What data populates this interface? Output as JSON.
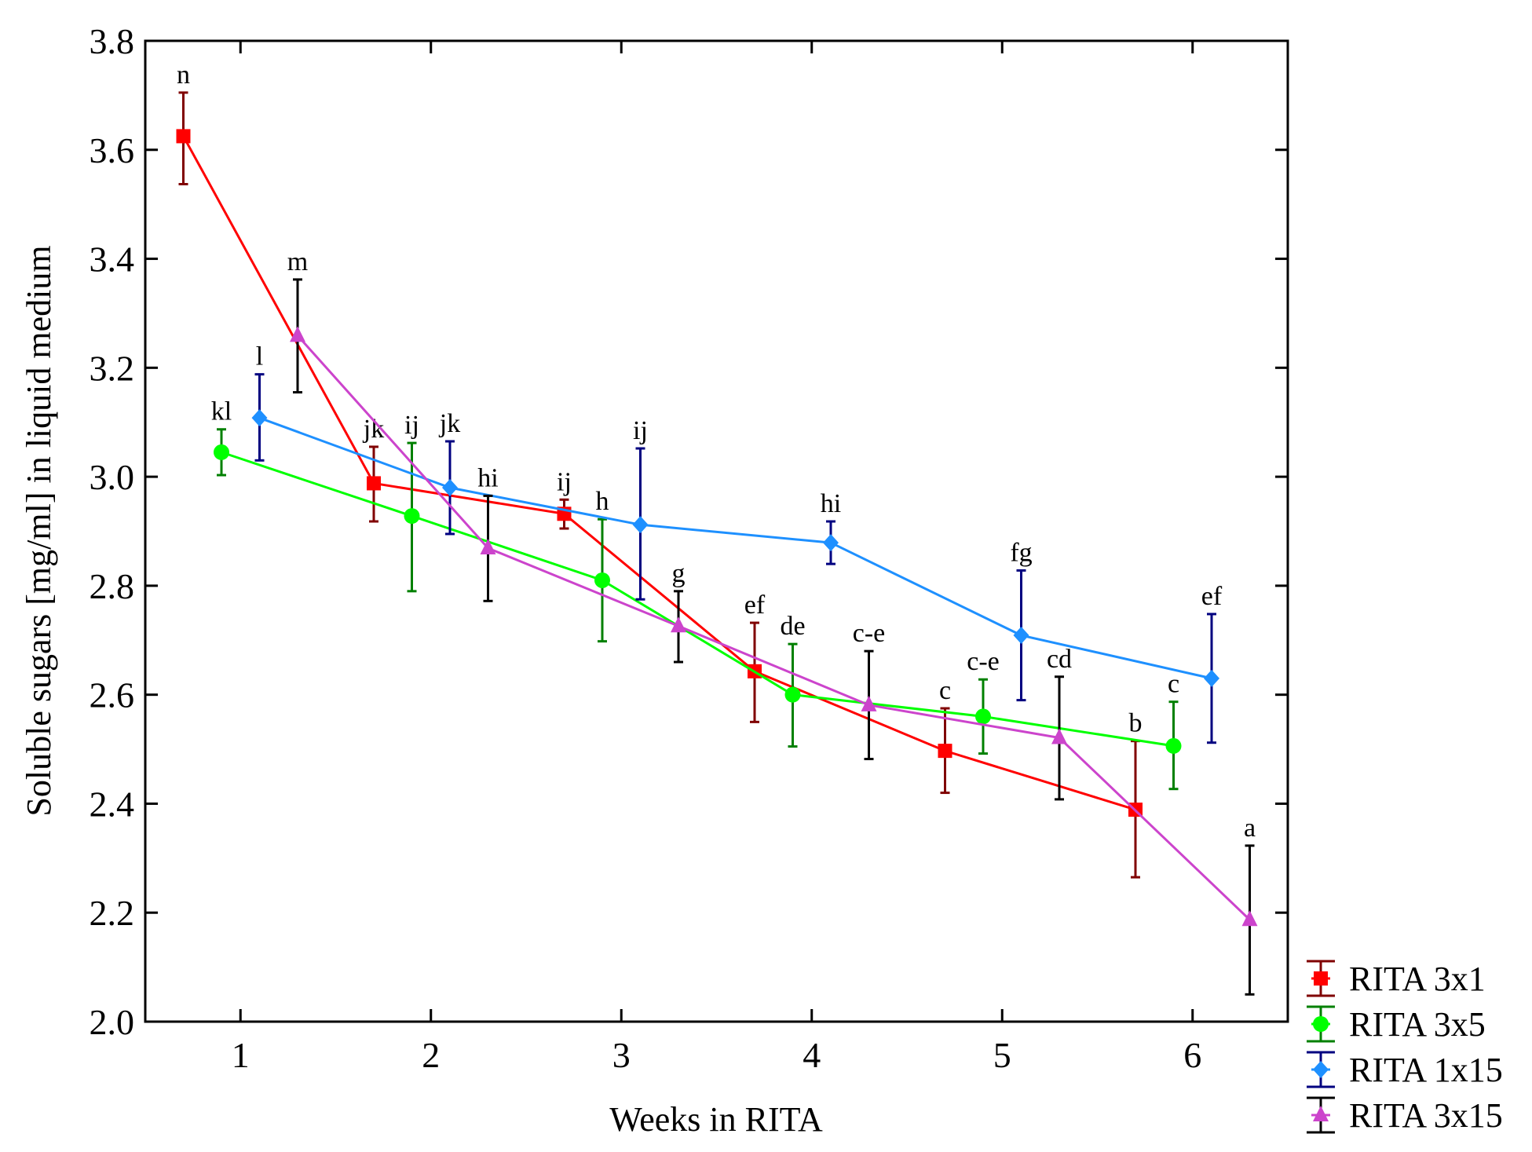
{
  "chart_data": {
    "type": "line",
    "title": "",
    "xlabel": "Weeks in RITA",
    "ylabel": "Soluble sugars [mg/ml] in liquid medium",
    "xlim": [
      0.5,
      6.5
    ],
    "ylim": [
      2.0,
      3.8
    ],
    "xticks": [
      "1",
      "2",
      "3",
      "4",
      "5",
      "6"
    ],
    "xtick_values": [
      1,
      2,
      3,
      4,
      5,
      6
    ],
    "yticks": [
      "2.0",
      "2.2",
      "2.4",
      "2.6",
      "2.8",
      "3.0",
      "3.2",
      "3.4",
      "3.6",
      "3.8"
    ],
    "ytick_values": [
      2.0,
      2.2,
      2.4,
      2.6,
      2.8,
      3.0,
      3.2,
      3.4,
      3.6,
      3.8
    ],
    "grid": false,
    "legend_position": "bottom-right outside",
    "series": [
      {
        "name": "RITA 3x1",
        "line_color": "#ff0000",
        "marker_color": "#ff0000",
        "error_color": "#800000",
        "marker": "square",
        "x": [
          0.7,
          1.7,
          2.7,
          3.7,
          4.7,
          5.7
        ],
        "y": [
          3.625,
          2.988,
          2.932,
          2.643,
          2.497,
          2.389
        ],
        "err_low": [
          3.537,
          2.918,
          2.905,
          2.55,
          2.42,
          2.265
        ],
        "err_high": [
          3.705,
          3.055,
          2.958,
          2.732,
          2.575,
          2.515
        ],
        "labels": [
          "n",
          "jk",
          "ij",
          "ef",
          "c",
          "b"
        ]
      },
      {
        "name": "RITA 3x5",
        "line_color": "#00ff00",
        "marker_color": "#00ff00",
        "error_color": "#008000",
        "marker": "circle",
        "x": [
          0.9,
          1.9,
          2.9,
          3.9,
          4.9,
          5.9
        ],
        "y": [
          3.045,
          2.928,
          2.81,
          2.6,
          2.56,
          2.506
        ],
        "err_low": [
          3.003,
          2.79,
          2.698,
          2.505,
          2.492,
          2.427
        ],
        "err_high": [
          3.087,
          3.062,
          2.922,
          2.693,
          2.628,
          2.587
        ],
        "labels": [
          "kl",
          "ij",
          "h",
          "de",
          "c-e",
          "c"
        ]
      },
      {
        "name": "RITA 1x15",
        "line_color": "#1e90ff",
        "marker_color": "#1e90ff",
        "error_color": "#000080",
        "marker": "diamond",
        "x": [
          1.1,
          2.1,
          3.1,
          4.1,
          5.1,
          6.1
        ],
        "y": [
          3.108,
          2.98,
          2.912,
          2.879,
          2.709,
          2.63
        ],
        "err_low": [
          3.03,
          2.895,
          2.775,
          2.84,
          2.59,
          2.512
        ],
        "err_high": [
          3.188,
          3.065,
          3.052,
          2.918,
          2.828,
          2.748
        ],
        "labels": [
          "l",
          "jk",
          "ij",
          "hi",
          "fg",
          "ef"
        ]
      },
      {
        "name": "RITA 3x15",
        "line_color": "#cc44cc",
        "marker_color": "#cc44cc",
        "error_color": "#000000",
        "marker": "triangle",
        "x": [
          1.3,
          2.3,
          3.3,
          4.3,
          5.3,
          6.3
        ],
        "y": [
          3.259,
          2.869,
          2.726,
          2.581,
          2.521,
          2.187
        ],
        "err_low": [
          3.155,
          2.772,
          2.66,
          2.482,
          2.408,
          2.05
        ],
        "err_high": [
          3.362,
          2.965,
          2.79,
          2.68,
          2.633,
          2.323
        ],
        "labels": [
          "m",
          "hi",
          "g",
          "c-e",
          "cd",
          "a"
        ]
      }
    ]
  }
}
